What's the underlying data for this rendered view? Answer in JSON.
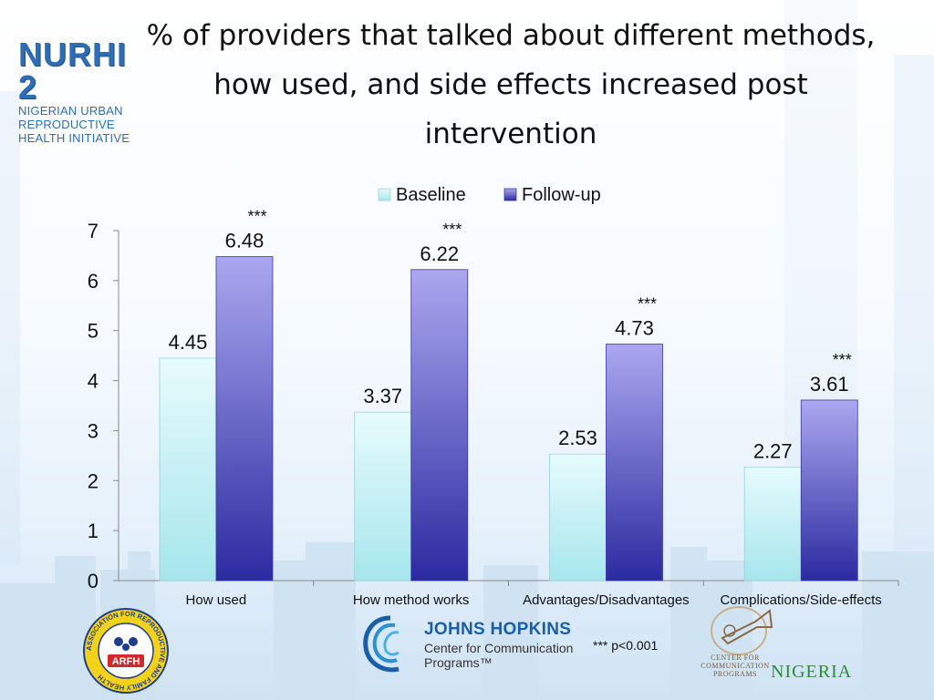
{
  "title": "% of providers that talked about different methods, how used, and side effects increased post intervention",
  "logos": {
    "nurhi_big": "NURHI 2",
    "nurhi_lines": [
      "NIGERIAN URBAN",
      "REPRODUCTIVE",
      "HEALTH INITIATIVE"
    ],
    "arfh_label": "ARFH",
    "arfh_ring": "ASSOCIATION FOR REPRODUCTIVE AND FAMILY HEALTH",
    "jhu_line1": "JOHNS HOPKINS",
    "jhu_line2": "Center for Communication",
    "jhu_line3": "Programs™",
    "ccp_small": "CENTER FOR COMMUNICATION PROGRAMS",
    "ccp_big": "NIGERIA"
  },
  "footnote": "*** p<0.001",
  "colors": {
    "baseline_top": "#e6fbfd",
    "baseline_bottom": "#a6e6ec",
    "followup_top": "#aaa8ee",
    "followup_bottom": "#2c2aa0",
    "nurhi_blue": "#2e6db4"
  },
  "chart_data": {
    "type": "bar",
    "categories": [
      "How used",
      "How method works",
      "Advantages/Disadvantages",
      "Complications/Side-effects"
    ],
    "series": [
      {
        "name": "Baseline",
        "values": [
          4.45,
          3.37,
          2.53,
          2.27
        ],
        "labels": [
          "4.45",
          "3.37",
          "2.53",
          "2.27"
        ]
      },
      {
        "name": "Follow-up",
        "values": [
          6.48,
          6.22,
          4.73,
          3.61
        ],
        "labels": [
          "6.48",
          "6.22",
          "4.73",
          "3.61"
        ]
      }
    ],
    "significance": [
      "***",
      "***",
      "***",
      "***"
    ],
    "ylim": [
      0,
      7
    ],
    "yticks": [
      0,
      1,
      2,
      3,
      4,
      5,
      6,
      7
    ],
    "ytick_labels": [
      "0",
      "1",
      "2",
      "3",
      "4",
      "5",
      "6",
      "7"
    ],
    "legend_position": "top",
    "grid": false
  }
}
